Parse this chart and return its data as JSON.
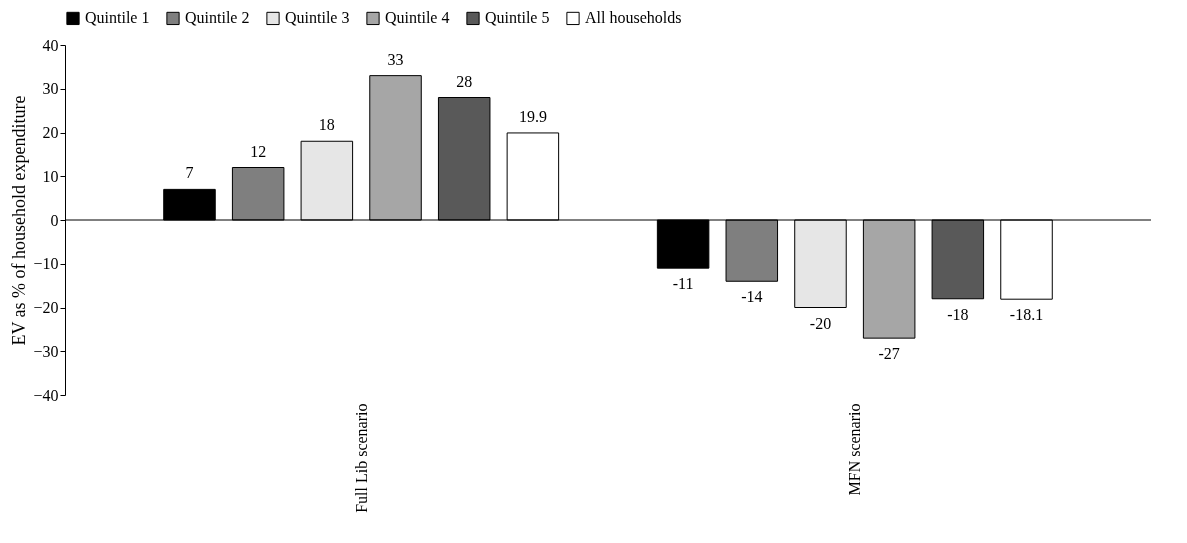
{
  "chart_data": {
    "type": "bar",
    "ylabel": "EV as % of household expenditure",
    "categories": [
      "Full Lib scenario",
      "MFN scenario"
    ],
    "series": [
      {
        "name": "Quintile 1",
        "color": "#000000",
        "values": [
          7,
          -11
        ]
      },
      {
        "name": "Quintile 2",
        "color": "#7f7f7f",
        "values": [
          12,
          -14
        ]
      },
      {
        "name": "Quintile 3",
        "color": "#e6e6e6",
        "values": [
          18,
          -20
        ]
      },
      {
        "name": "Quintile 4",
        "color": "#a6a6a6",
        "values": [
          33,
          -27
        ]
      },
      {
        "name": "Quintile 5",
        "color": "#595959",
        "values": [
          28,
          -18
        ]
      },
      {
        "name": "All households",
        "color": "#ffffff",
        "values": [
          19.9,
          -18.1
        ]
      }
    ],
    "ylim": [
      -40,
      40
    ],
    "yticks": [
      -40,
      -30,
      -20,
      -10,
      0,
      10,
      20,
      30,
      40
    ],
    "grid": false,
    "legend": "top",
    "data_labels": true,
    "ref_lines": [
      {
        "axis": "y",
        "value": 0
      }
    ]
  }
}
